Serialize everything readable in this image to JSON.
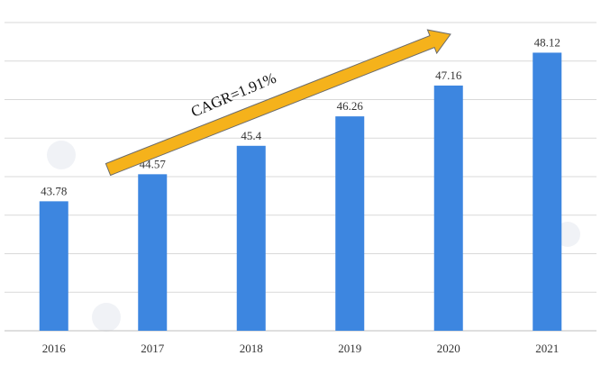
{
  "chart_data": {
    "type": "bar",
    "categories": [
      "2016",
      "2017",
      "2018",
      "2019",
      "2020",
      "2021"
    ],
    "values": [
      43.78,
      44.57,
      45.4,
      46.26,
      47.16,
      48.12
    ],
    "data_labels": [
      "43.78",
      "44.57",
      "45.4",
      "46.26",
      "47.16",
      "48.12"
    ],
    "ylim": [
      40,
      49
    ],
    "grid": true,
    "annotation": "CAGR=1.91%",
    "colors": {
      "bar": "#3d86e0",
      "arrow": "#f5b21b",
      "grid": "#d9d9d9"
    }
  }
}
